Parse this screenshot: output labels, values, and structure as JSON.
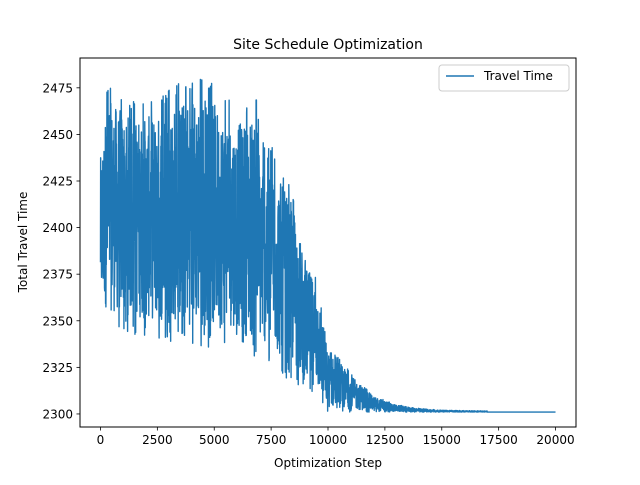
{
  "chart_data": {
    "type": "line",
    "title": "Site Schedule Optimization",
    "xlabel": "Optimization Step",
    "ylabel": "Total Travel Time",
    "xlim": [
      -900,
      20900
    ],
    "ylim": [
      2293,
      2491
    ],
    "grid": false,
    "legend_placement": "top-right",
    "x_ticks": [
      0,
      2500,
      5000,
      7500,
      10000,
      12500,
      15000,
      17500,
      20000
    ],
    "x_tick_labels": [
      "0",
      "2500",
      "5000",
      "7500",
      "10000",
      "12500",
      "15000",
      "17500",
      "20000"
    ],
    "y_ticks": [
      2300,
      2325,
      2350,
      2375,
      2400,
      2425,
      2450,
      2475
    ],
    "y_tick_labels": [
      "2300",
      "2325",
      "2350",
      "2375",
      "2400",
      "2425",
      "2450",
      "2475"
    ],
    "series": [
      {
        "name": "Travel Time",
        "color": "#1f77b4",
        "x_range": [
          0,
          20000
        ],
        "final_value": 2301,
        "upper_envelope": {
          "x": [
            0,
            300,
            1500,
            2500,
            3500,
            4500,
            5500,
            6000,
            6500,
            6800,
            7000,
            7500,
            8000,
            8500,
            9000,
            9500,
            10000,
            10500,
            11000,
            11500,
            12000,
            13000,
            14000,
            15000,
            20000
          ],
          "y": [
            2444,
            2478,
            2468,
            2470,
            2478,
            2484,
            2470,
            2465,
            2468,
            2478,
            2450,
            2445,
            2430,
            2418,
            2385,
            2375,
            2335,
            2330,
            2322,
            2316,
            2310,
            2305,
            2303,
            2302,
            2301
          ]
        },
        "lower_envelope": {
          "x": [
            0,
            500,
            2500,
            5000,
            6000,
            6500,
            7000,
            7500,
            8000,
            8500,
            9000,
            9500,
            10000,
            10500,
            11000,
            12000,
            13000,
            14000,
            15000,
            20000
          ],
          "y": [
            2350,
            2345,
            2340,
            2335,
            2338,
            2330,
            2330,
            2327,
            2320,
            2318,
            2312,
            2310,
            2301,
            2301,
            2301,
            2301,
            2301,
            2301,
            2301,
            2301
          ]
        }
      }
    ]
  }
}
